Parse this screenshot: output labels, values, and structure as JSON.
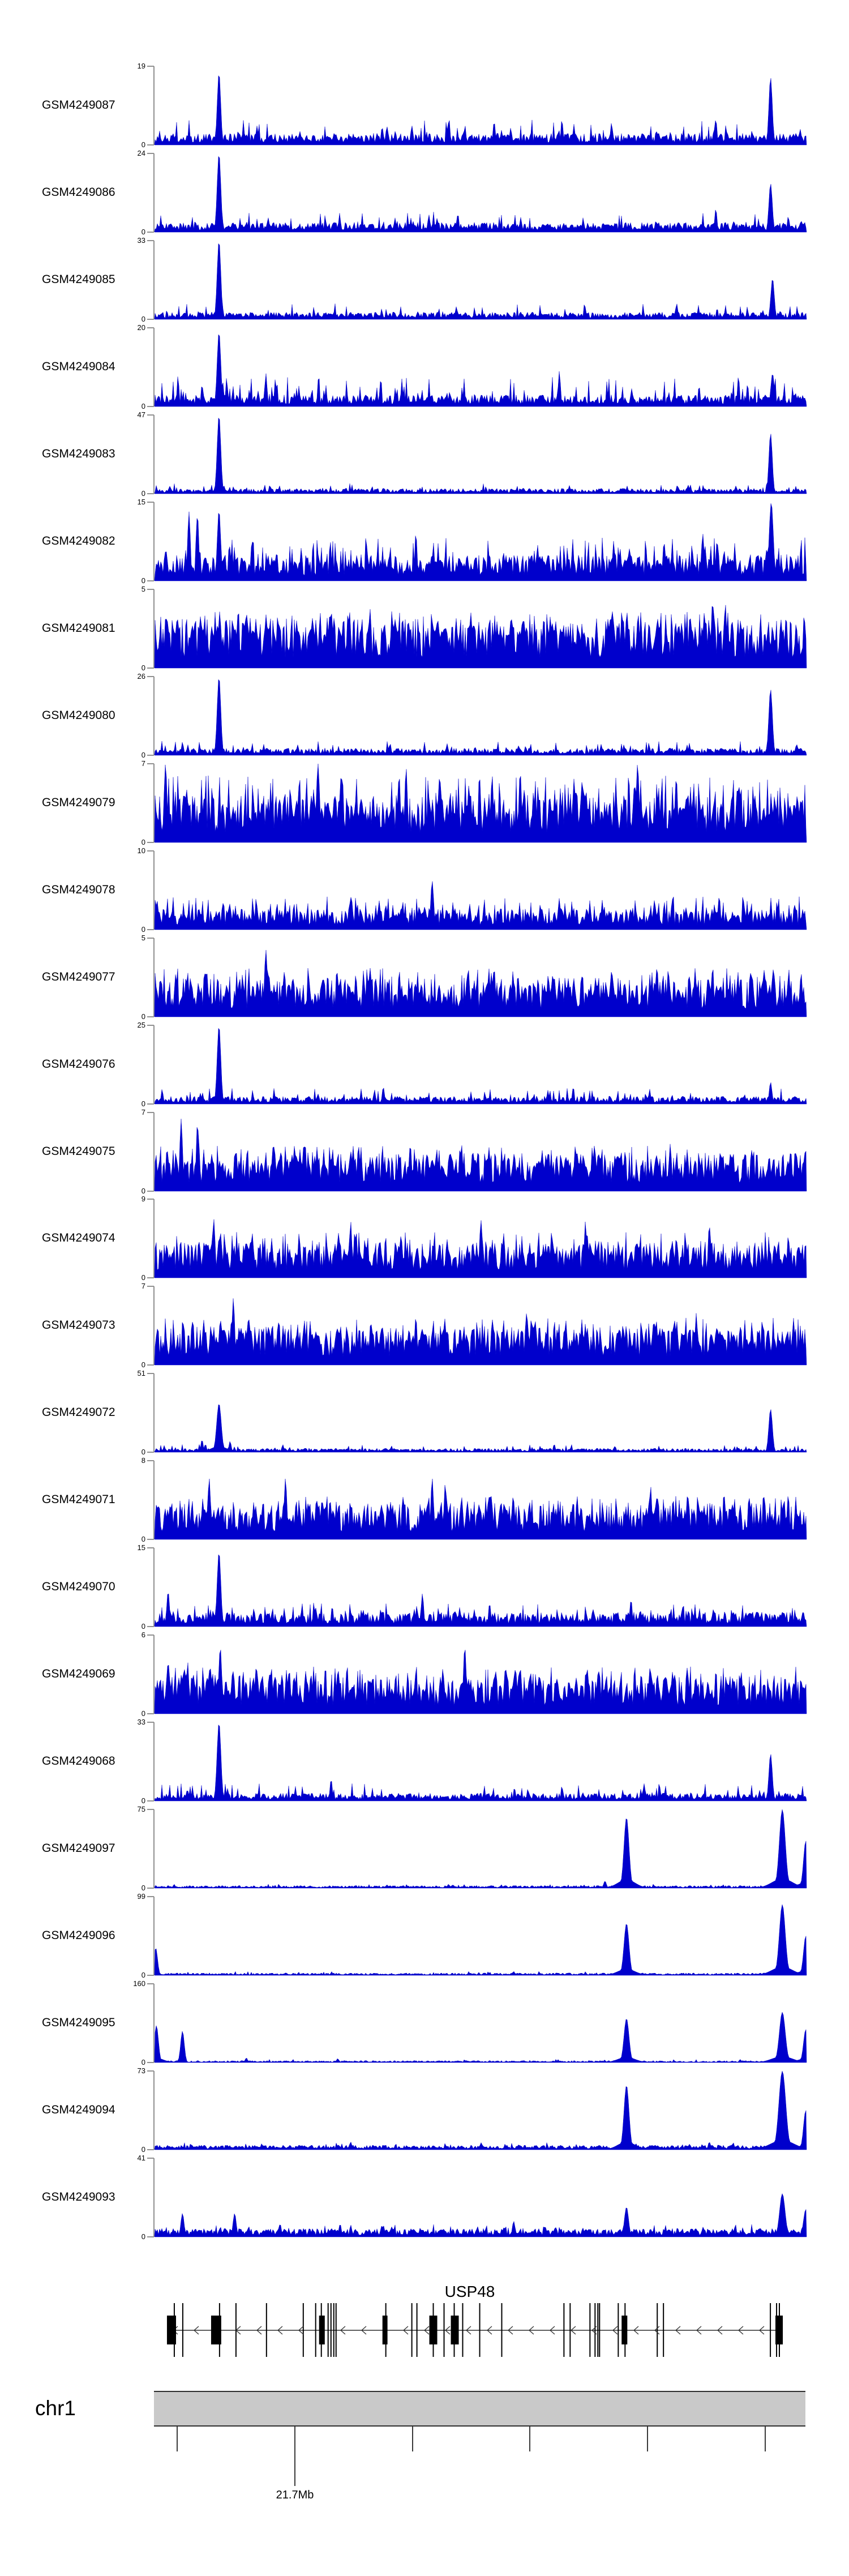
{
  "colors": {
    "signal": "#0000cc",
    "axis": "#909090",
    "text": "#000000",
    "gene": "#000000",
    "ideogram_fill": "#c9c9c9",
    "ideogram_border": "#2f2f2f",
    "background": "#ffffff"
  },
  "chart_data": {
    "type": "area",
    "description": "Stacked genome-browser coverage tracks (blue wiggle plots), one per GEO sample, over the USP48 locus on chr1; each track has y-axis from 0 to its own max.",
    "y_base_label": "0",
    "tracks": [
      {
        "label": "GSM4249087",
        "ymax": 19,
        "ymin": 0,
        "noise": 0.09,
        "spike_prob": 0.15,
        "spike_max": 0.32,
        "peaks": [
          [
            0.098,
            0.92,
            1.5
          ],
          [
            0.944,
            0.86,
            1.5
          ],
          [
            0.52,
            0.3,
            1
          ],
          [
            0.7,
            0.28,
            1
          ],
          [
            0.86,
            0.33,
            1
          ]
        ]
      },
      {
        "label": "GSM4249086",
        "ymax": 24,
        "ymin": 0,
        "noise": 0.075,
        "spike_prob": 0.12,
        "spike_max": 0.27,
        "peaks": [
          [
            0.098,
            1.0,
            1.6
          ],
          [
            0.944,
            0.62,
            1.5
          ],
          [
            0.42,
            0.22,
            1
          ],
          [
            0.86,
            0.3,
            1
          ]
        ]
      },
      {
        "label": "GSM4249085",
        "ymax": 33,
        "ymin": 0,
        "noise": 0.055,
        "spike_prob": 0.1,
        "spike_max": 0.2,
        "peaks": [
          [
            0.098,
            1.0,
            1.6
          ],
          [
            0.947,
            0.52,
            1.5
          ],
          [
            0.8,
            0.2,
            1
          ]
        ]
      },
      {
        "label": "GSM4249084",
        "ymax": 20,
        "ymin": 0,
        "noise": 0.09,
        "spike_prob": 0.18,
        "spike_max": 0.38,
        "peaks": [
          [
            0.098,
            0.95,
            1.6
          ],
          [
            0.947,
            0.42,
            1.5
          ],
          [
            0.17,
            0.42,
            1
          ],
          [
            0.62,
            0.45,
            1
          ]
        ]
      },
      {
        "label": "GSM4249083",
        "ymax": 47,
        "ymin": 0,
        "noise": 0.04,
        "spike_prob": 0.1,
        "spike_max": 0.13,
        "peaks": [
          [
            0.098,
            1.0,
            1.6
          ],
          [
            0.944,
            0.77,
            1.5
          ]
        ]
      },
      {
        "label": "GSM4249082",
        "ymax": 15,
        "ymin": 0,
        "noise": 0.2,
        "spike_prob": 0.3,
        "spike_max": 0.55,
        "peaks": [
          [
            0.098,
            0.9,
            1.5
          ],
          [
            0.945,
            1.0,
            1.8
          ],
          [
            0.052,
            0.88,
            1.2
          ],
          [
            0.065,
            0.85,
            1.2
          ],
          [
            0.4,
            0.62,
            1
          ],
          [
            0.84,
            0.6,
            1.2
          ]
        ]
      },
      {
        "label": "GSM4249081",
        "ymax": 5,
        "ymin": 0,
        "noise": 0.38,
        "spike_prob": 0.35,
        "spike_max": 0.72,
        "peaks": [
          [
            0.855,
            0.85,
            1.2
          ],
          [
            0.875,
            0.8,
            1
          ],
          [
            0.33,
            0.75,
            1
          ],
          [
            0.14,
            0.72,
            1
          ]
        ]
      },
      {
        "label": "GSM4249080",
        "ymax": 26,
        "ymin": 0,
        "noise": 0.055,
        "spike_prob": 0.12,
        "spike_max": 0.18,
        "peaks": [
          [
            0.098,
            1.0,
            1.6
          ],
          [
            0.944,
            0.84,
            1.6
          ]
        ]
      },
      {
        "label": "GSM4249079",
        "ymax": 7,
        "ymin": 0,
        "noise": 0.36,
        "spike_prob": 0.35,
        "spike_max": 0.85,
        "peaks": [
          [
            0.016,
            1.0,
            1.3
          ],
          [
            0.25,
            1.0,
            1.3
          ],
          [
            0.385,
            0.95,
            1.2
          ],
          [
            0.74,
            1.0,
            1.3
          ],
          [
            0.56,
            0.9,
            1.2
          ]
        ]
      },
      {
        "label": "GSM4249078",
        "ymax": 10,
        "ymin": 0,
        "noise": 0.16,
        "spike_prob": 0.22,
        "spike_max": 0.42,
        "peaks": [
          [
            0.003,
            0.37,
            1.2
          ],
          [
            0.425,
            0.62,
            1.3
          ],
          [
            0.3,
            0.42,
            1
          ],
          [
            0.62,
            0.4,
            1
          ]
        ]
      },
      {
        "label": "GSM4249077",
        "ymax": 5,
        "ymin": 0,
        "noise": 0.3,
        "spike_prob": 0.32,
        "spike_max": 0.62,
        "peaks": [
          [
            0.17,
            0.85,
            1.3
          ],
          [
            0.33,
            0.62,
            1.2
          ],
          [
            0.52,
            0.62,
            1.2
          ],
          [
            0.77,
            0.6,
            1.2
          ]
        ]
      },
      {
        "label": "GSM4249076",
        "ymax": 25,
        "ymin": 0,
        "noise": 0.06,
        "spike_prob": 0.12,
        "spike_max": 0.2,
        "peaks": [
          [
            0.098,
            1.0,
            1.6
          ],
          [
            0.944,
            0.28,
            1.2
          ],
          [
            0.35,
            0.22,
            1
          ]
        ]
      },
      {
        "label": "GSM4249075",
        "ymax": 7,
        "ymin": 0,
        "noise": 0.3,
        "spike_prob": 0.3,
        "spike_max": 0.58,
        "peaks": [
          [
            0.04,
            0.92,
            1.2
          ],
          [
            0.065,
            0.88,
            1.1
          ],
          [
            0.23,
            0.62,
            1.1
          ],
          [
            0.47,
            0.6,
            1.1
          ],
          [
            0.79,
            0.6,
            1.1
          ]
        ]
      },
      {
        "label": "GSM4249074",
        "ymax": 9,
        "ymin": 0,
        "noise": 0.28,
        "spike_prob": 0.3,
        "spike_max": 0.58,
        "peaks": [
          [
            0.09,
            0.75,
            1.2
          ],
          [
            0.3,
            0.72,
            1.1
          ],
          [
            0.5,
            0.73,
            1.2
          ],
          [
            0.66,
            0.72,
            1.1
          ],
          [
            0.85,
            0.68,
            1.1
          ]
        ]
      },
      {
        "label": "GSM4249073",
        "ymax": 7,
        "ymin": 0,
        "noise": 0.3,
        "spike_prob": 0.3,
        "spike_max": 0.6,
        "peaks": [
          [
            0.12,
            0.85,
            1.2
          ],
          [
            0.4,
            0.62,
            1.1
          ],
          [
            0.57,
            0.68,
            1.1
          ],
          [
            0.83,
            0.66,
            1.1
          ]
        ]
      },
      {
        "label": "GSM4249072",
        "ymax": 51,
        "ymin": 0,
        "noise": 0.03,
        "spike_prob": 0.1,
        "spike_max": 0.1,
        "peaks": [
          [
            0.098,
            0.62,
            2
          ],
          [
            0.944,
            0.55,
            1.6
          ],
          [
            0.072,
            0.16,
            1
          ],
          [
            0.115,
            0.14,
            1
          ]
        ]
      },
      {
        "label": "GSM4249071",
        "ymax": 8,
        "ymin": 0,
        "noise": 0.28,
        "spike_prob": 0.3,
        "spike_max": 0.55,
        "peaks": [
          [
            0.083,
            0.78,
            1.2
          ],
          [
            0.2,
            0.78,
            1.2
          ],
          [
            0.425,
            0.78,
            1.2
          ],
          [
            0.445,
            0.72,
            1.1
          ],
          [
            0.76,
            0.68,
            1.1
          ]
        ]
      },
      {
        "label": "GSM4249070",
        "ymax": 15,
        "ymin": 0,
        "noise": 0.11,
        "spike_prob": 0.18,
        "spike_max": 0.3,
        "peaks": [
          [
            0.098,
            0.95,
            1.6
          ],
          [
            0.02,
            0.45,
            1.2
          ],
          [
            0.41,
            0.42,
            1.1
          ],
          [
            0.73,
            0.35,
            1
          ]
        ]
      },
      {
        "label": "GSM4249069",
        "ymax": 6,
        "ymin": 0,
        "noise": 0.3,
        "spike_prob": 0.32,
        "spike_max": 0.6,
        "peaks": [
          [
            0.1,
            0.85,
            1.3
          ],
          [
            0.475,
            0.85,
            1.3
          ],
          [
            0.02,
            0.68,
            1.1
          ],
          [
            0.05,
            0.66,
            1.1
          ],
          [
            0.56,
            0.6,
            1.1
          ]
        ]
      },
      {
        "label": "GSM4249068",
        "ymax": 33,
        "ymin": 0,
        "noise": 0.06,
        "spike_prob": 0.12,
        "spike_max": 0.22,
        "peaks": [
          [
            0.098,
            1.0,
            1.7
          ],
          [
            0.944,
            0.6,
            1.5
          ],
          [
            0.27,
            0.28,
            1
          ],
          [
            0.75,
            0.22,
            1
          ]
        ]
      },
      {
        "label": "GSM4249097",
        "ymax": 75,
        "ymin": 0,
        "noise": 0.02,
        "spike_prob": 0.06,
        "spike_max": 0.05,
        "peaks": [
          [
            0.723,
            0.9,
            2.2
          ],
          [
            0.962,
            1.0,
            2.6
          ],
          [
            0.998,
            0.6,
            2
          ],
          [
            0.69,
            0.09,
            1.2
          ],
          [
            0.45,
            0.05,
            1
          ]
        ]
      },
      {
        "label": "GSM4249096",
        "ymax": 99,
        "ymin": 0,
        "noise": 0.018,
        "spike_prob": 0.06,
        "spike_max": 0.05,
        "peaks": [
          [
            0.001,
            0.35,
            1.6
          ],
          [
            0.723,
            0.66,
            2.2
          ],
          [
            0.962,
            0.9,
            2.6
          ],
          [
            0.998,
            0.5,
            2
          ],
          [
            0.55,
            0.05,
            1
          ]
        ]
      },
      {
        "label": "GSM4249095",
        "ymax": 160,
        "ymin": 0,
        "noise": 0.015,
        "spike_prob": 0.05,
        "spike_max": 0.04,
        "peaks": [
          [
            0.002,
            0.47,
            1.8
          ],
          [
            0.042,
            0.4,
            1.6
          ],
          [
            0.723,
            0.56,
            2.2
          ],
          [
            0.962,
            0.64,
            2.6
          ],
          [
            0.998,
            0.42,
            2
          ],
          [
            0.14,
            0.06,
            1
          ],
          [
            0.28,
            0.05,
            1
          ]
        ]
      },
      {
        "label": "GSM4249094",
        "ymax": 73,
        "ymin": 0,
        "noise": 0.035,
        "spike_prob": 0.1,
        "spike_max": 0.09,
        "peaks": [
          [
            0.723,
            0.82,
            2.2
          ],
          [
            0.962,
            1.0,
            3
          ],
          [
            0.998,
            0.5,
            2
          ],
          [
            0.3,
            0.1,
            1
          ],
          [
            0.5,
            0.09,
            1
          ],
          [
            0.85,
            0.1,
            1
          ]
        ]
      },
      {
        "label": "GSM4249093",
        "ymax": 41,
        "ymin": 0,
        "noise": 0.065,
        "spike_prob": 0.15,
        "spike_max": 0.16,
        "peaks": [
          [
            0.042,
            0.3,
            1.4
          ],
          [
            0.122,
            0.3,
            1.4
          ],
          [
            0.723,
            0.38,
            1.8
          ],
          [
            0.962,
            0.55,
            2.4
          ],
          [
            0.998,
            0.35,
            2
          ],
          [
            0.35,
            0.15,
            1
          ],
          [
            0.55,
            0.2,
            1.2
          ]
        ]
      }
    ],
    "gene_panel": {
      "gene": "USP48",
      "strand": "minus",
      "span": [
        0.0208,
        0.9636
      ],
      "exon_lines": [
        0.0312,
        0.0442,
        0.1006,
        0.1258,
        0.1726,
        0.229,
        0.248,
        0.2567,
        0.2671,
        0.2715,
        0.2758,
        0.2793,
        0.3556,
        0.3955,
        0.4033,
        0.4284,
        0.4449,
        0.4605,
        0.4735,
        0.4996,
        0.5334,
        0.6288,
        0.6383,
        0.6687,
        0.6765,
        0.6808,
        0.6834,
        0.7121,
        0.7225,
        0.7719,
        0.7814,
        0.9454,
        0.9549,
        0.9592
      ],
      "cds_boxes": [
        [
          0.0208,
          0.033
        ],
        [
          0.0885,
          0.1023
        ],
        [
          0.2541,
          0.2611
        ],
        [
          0.3513,
          0.3573
        ],
        [
          0.4232,
          0.4336
        ],
        [
          0.4562,
          0.4666
        ],
        [
          0.7181,
          0.7251
        ],
        [
          0.954,
          0.9636
        ]
      ]
    },
    "ideogram": {
      "chrom": "chr1"
    },
    "ruler": {
      "major_label": "21.7Mb",
      "ticks": [
        {
          "frac": 0.0356,
          "major": false
        },
        {
          "frac": 0.216,
          "major": true,
          "label": "21.7Mb"
        },
        {
          "frac": 0.3964,
          "major": false
        },
        {
          "frac": 0.5768,
          "major": false
        },
        {
          "frac": 0.7572,
          "major": false
        },
        {
          "frac": 0.9376,
          "major": false
        }
      ]
    }
  }
}
